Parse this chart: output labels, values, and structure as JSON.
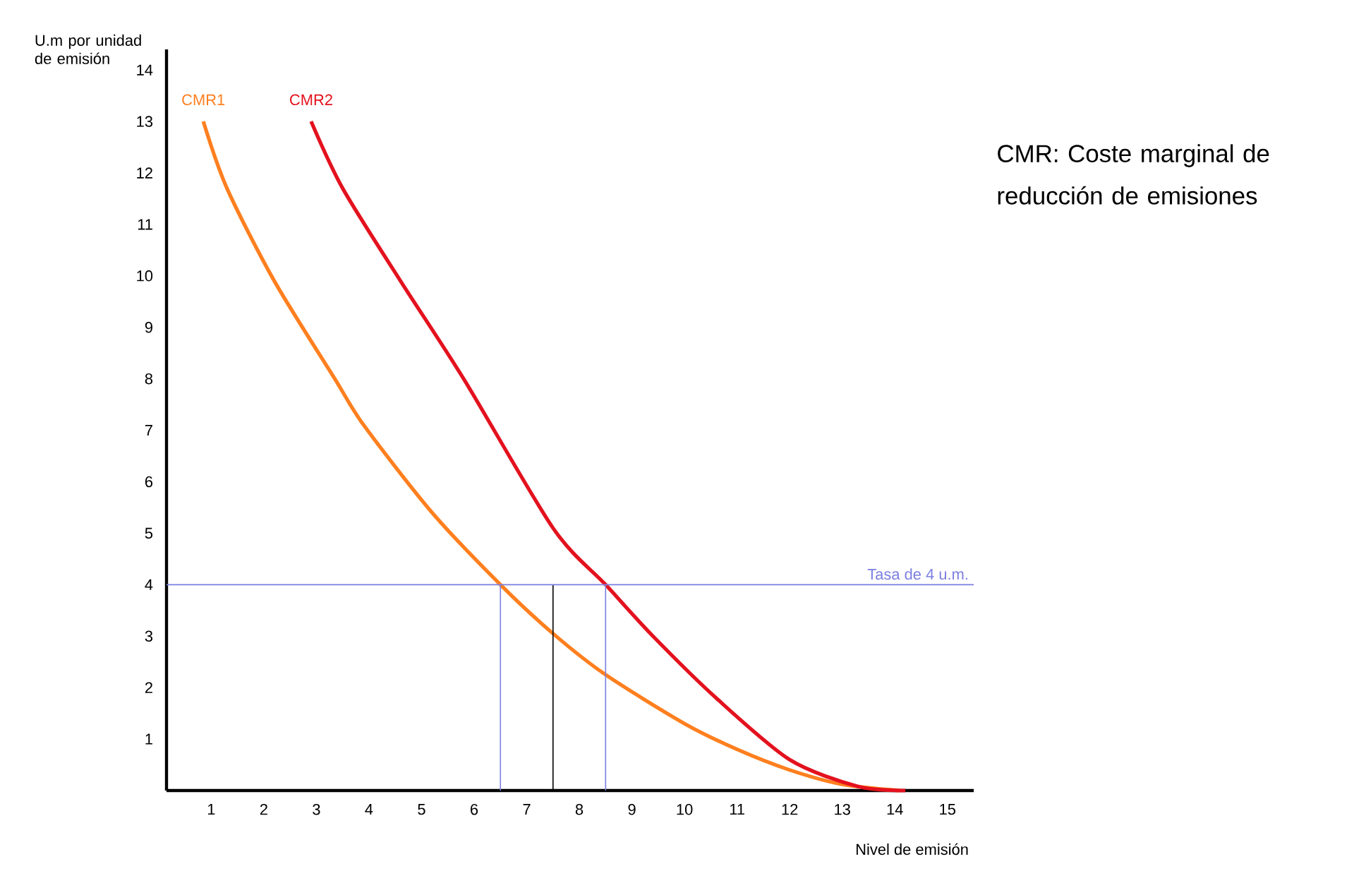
{
  "chart_data": {
    "type": "line",
    "ylabel": "U.m por unidad de emisión",
    "xlabel": "Nivel de emisión",
    "annotations": [
      "CMR: Coste marginal de reducción de emisiones"
    ],
    "xlim": [
      0.15,
      15.5
    ],
    "ylim": [
      0,
      14.4
    ],
    "xticks": [
      1,
      2,
      3,
      4,
      5,
      6,
      7,
      8,
      9,
      10,
      11,
      12,
      13,
      14,
      15
    ],
    "yticks": [
      1,
      2,
      3,
      4,
      5,
      6,
      7,
      8,
      9,
      10,
      11,
      12,
      13,
      14
    ],
    "series": [
      {
        "name": "CMR1",
        "color": "#ff7f1f",
        "x": [
          0.85,
          1.3,
          2.2,
          3.35,
          3.9,
          5.2,
          6.5,
          7.5,
          8.5,
          10,
          11,
          12,
          13,
          14.1
        ],
        "values": [
          13,
          11.7,
          9.9,
          8.0,
          7.1,
          5.4,
          4,
          3.05,
          2.25,
          1.3,
          0.8,
          0.4,
          0.12,
          0
        ]
      },
      {
        "name": "CMR2",
        "color": "#e3121e",
        "x": [
          2.9,
          3.5,
          4.6,
          5.8,
          7.5,
          8.5,
          9.4,
          10.6,
          12,
          13.3,
          14.2
        ],
        "values": [
          13,
          11.7,
          9.9,
          8.0,
          5.1,
          4,
          3.0,
          1.8,
          0.6,
          0.08,
          0
        ]
      },
      {
        "color": "#7b7fe0",
        "x": [
          6.5,
          6.5
        ],
        "values": [
          0,
          4
        ]
      },
      {
        "color": "#000000",
        "x": [
          7.5,
          7.5
        ],
        "values": [
          0,
          4
        ]
      },
      {
        "color": "#7b7fe0",
        "x": [
          8.5,
          8.5
        ],
        "values": [
          0,
          4
        ]
      }
    ],
    "ref_lines": [
      {
        "axis": "y",
        "value": 4,
        "label": "Tasa de 4 u.m.",
        "color": "#7b7fe0"
      }
    ]
  }
}
